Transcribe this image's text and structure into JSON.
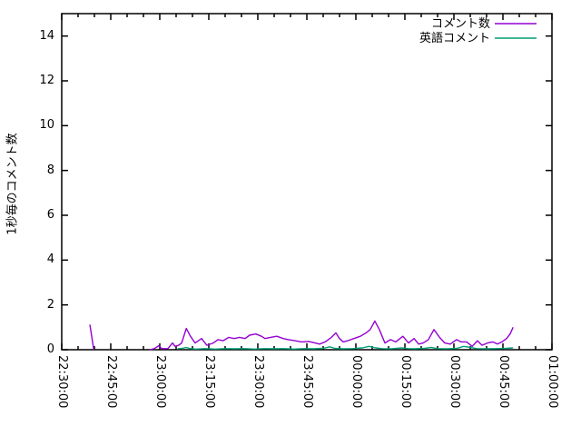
{
  "chart_data": {
    "type": "line",
    "title": "",
    "xlabel": "",
    "ylabel": "1秒毎のコメント数",
    "x_axis": {
      "unit": "time",
      "range_minutes": [
        0,
        150
      ],
      "major_tick_step_minutes": 15,
      "minor_tick_step_minutes": 5,
      "tick_labels": [
        "22:30:00",
        "22:45:00",
        "23:00:00",
        "23:15:00",
        "23:30:00",
        "23:45:00",
        "00:00:00",
        "00:15:00",
        "00:30:00",
        "00:45:00",
        "01:00:00"
      ]
    },
    "y_axis": {
      "range": [
        0,
        15
      ],
      "major_ticks": [
        0,
        2,
        4,
        6,
        8,
        10,
        12,
        14
      ]
    },
    "grid": false,
    "legend_position": "top-right-inside",
    "axis_color": "#000000",
    "background_color": "#ffffff",
    "series": [
      {
        "name": "コメント数",
        "color": "#9400d3",
        "segments": [
          [
            [
              8.6,
              1.12
            ],
            [
              9.8,
              0
            ]
          ],
          [
            [
              27.0,
              0
            ],
            [
              28.3,
              0.05
            ],
            [
              29.7,
              0.18
            ],
            [
              30.6,
              0.05
            ],
            [
              32.5,
              0.05
            ],
            [
              33.9,
              0.3
            ],
            [
              34.7,
              0.15
            ],
            [
              35.8,
              0.2
            ],
            [
              36.7,
              0.3
            ],
            [
              38.1,
              0.95
            ],
            [
              39.4,
              0.6
            ],
            [
              40.8,
              0.3
            ],
            [
              42.8,
              0.5
            ],
            [
              44.4,
              0.2
            ],
            [
              46.4,
              0.3
            ],
            [
              47.8,
              0.45
            ],
            [
              49.4,
              0.4
            ],
            [
              51.1,
              0.55
            ],
            [
              52.8,
              0.5
            ],
            [
              54.4,
              0.55
            ],
            [
              56.1,
              0.5
            ],
            [
              57.5,
              0.65
            ],
            [
              59.4,
              0.7
            ],
            [
              61.1,
              0.6
            ],
            [
              62.2,
              0.5
            ],
            [
              63.9,
              0.55
            ],
            [
              65.8,
              0.6
            ],
            [
              67.8,
              0.5
            ],
            [
              69.4,
              0.45
            ],
            [
              71.4,
              0.4
            ],
            [
              73.3,
              0.35
            ],
            [
              75.6,
              0.37
            ],
            [
              77.5,
              0.3
            ],
            [
              78.9,
              0.25
            ],
            [
              80.6,
              0.35
            ],
            [
              82.5,
              0.55
            ],
            [
              83.9,
              0.75
            ],
            [
              85.0,
              0.5
            ],
            [
              86.1,
              0.35
            ],
            [
              87.5,
              0.4
            ],
            [
              89.4,
              0.5
            ],
            [
              91.4,
              0.6
            ],
            [
              93.1,
              0.75
            ],
            [
              94.4,
              0.9
            ],
            [
              95.8,
              1.28
            ],
            [
              97.2,
              0.9
            ],
            [
              98.9,
              0.3
            ],
            [
              100.6,
              0.45
            ],
            [
              102.2,
              0.35
            ],
            [
              104.4,
              0.6
            ],
            [
              106.1,
              0.3
            ],
            [
              107.8,
              0.5
            ],
            [
              109.2,
              0.25
            ],
            [
              110.6,
              0.3
            ],
            [
              112.2,
              0.45
            ],
            [
              113.9,
              0.9
            ],
            [
              115.6,
              0.55
            ],
            [
              117.2,
              0.3
            ],
            [
              118.9,
              0.25
            ],
            [
              120.8,
              0.45
            ],
            [
              122.2,
              0.35
            ],
            [
              123.9,
              0.35
            ],
            [
              125.6,
              0.15
            ],
            [
              127.2,
              0.4
            ],
            [
              128.6,
              0.2
            ],
            [
              130.3,
              0.3
            ],
            [
              131.9,
              0.35
            ],
            [
              133.3,
              0.25
            ],
            [
              134.7,
              0.35
            ],
            [
              136.1,
              0.5
            ],
            [
              137.2,
              0.7
            ],
            [
              138.1,
              1.0
            ]
          ]
        ]
      },
      {
        "name": "英語コメント",
        "color": "#009e73",
        "segments": [
          [
            [
              35.5,
              0.04
            ],
            [
              37,
              0.06
            ],
            [
              38,
              0.1
            ],
            [
              39.4,
              0.05
            ],
            [
              41,
              0.03
            ],
            [
              44,
              0.05
            ],
            [
              47,
              0.03
            ],
            [
              50,
              0.05
            ],
            [
              53,
              0.04
            ],
            [
              56,
              0.05
            ],
            [
              59,
              0.03
            ],
            [
              62,
              0.05
            ],
            [
              65,
              0.04
            ],
            [
              68,
              0.05
            ],
            [
              71,
              0.03
            ],
            [
              74,
              0.05
            ],
            [
              77,
              0.04
            ],
            [
              80,
              0.06
            ],
            [
              82,
              0.13
            ],
            [
              83.5,
              0.06
            ],
            [
              86,
              0.04
            ],
            [
              89,
              0.05
            ],
            [
              92,
              0.08
            ],
            [
              94,
              0.15
            ],
            [
              96,
              0.08
            ],
            [
              98,
              0.05
            ],
            [
              101,
              0.04
            ],
            [
              104,
              0.08
            ],
            [
              106,
              0.05
            ],
            [
              108,
              0.04
            ],
            [
              111,
              0.06
            ],
            [
              113,
              0.1
            ],
            [
              115,
              0.05
            ],
            [
              118,
              0.04
            ],
            [
              121,
              0.06
            ],
            [
              123,
              0.15
            ],
            [
              125,
              0.1
            ],
            [
              127,
              0.05
            ],
            [
              130,
              0.04
            ],
            [
              133,
              0.05
            ],
            [
              136,
              0.06
            ],
            [
              138.1,
              0.08
            ]
          ]
        ]
      }
    ]
  }
}
